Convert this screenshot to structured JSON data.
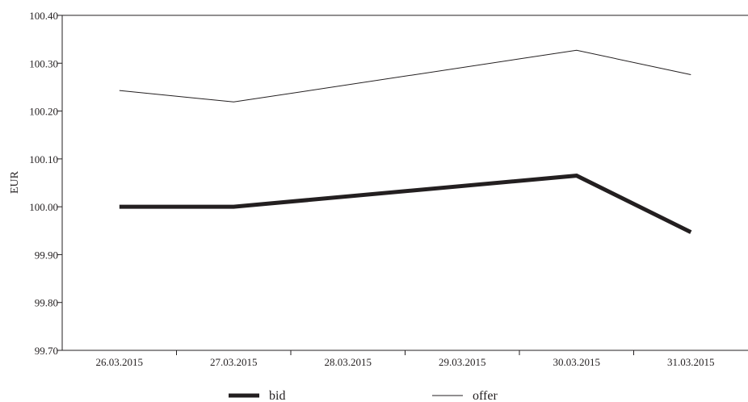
{
  "chart_data": {
    "type": "line",
    "title": "",
    "xlabel": "",
    "ylabel": "EUR",
    "categories": [
      "26.03.2015",
      "27.03.2015",
      "28.03.2015",
      "29.03.2015",
      "30.03.2015",
      "31.03.2015"
    ],
    "series": [
      {
        "name": "bid",
        "x": [
          "26.03.2015",
          "27.03.2015",
          "30.03.2015",
          "31.03.2015"
        ],
        "values": [
          100.0,
          100.0,
          100.065,
          99.947
        ],
        "style": "thick",
        "color": "#231f20"
      },
      {
        "name": "offer",
        "x": [
          "26.03.2015",
          "27.03.2015",
          "30.03.2015",
          "31.03.2015"
        ],
        "values": [
          100.243,
          100.219,
          100.327,
          100.276
        ],
        "style": "thin",
        "color": "#231f20"
      }
    ],
    "yticks": [
      "100.40",
      "100.30",
      "100.20",
      "100.10",
      "100.00",
      "99.90",
      "99.80",
      "99.70"
    ],
    "ylim": [
      99.7,
      100.4
    ],
    "grid": false,
    "legend_position": "bottom"
  }
}
